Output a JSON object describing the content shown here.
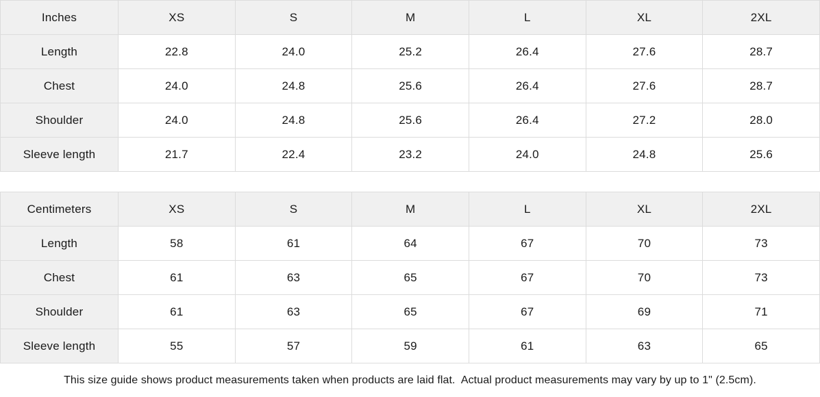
{
  "tables": [
    {
      "unit_label": "Inches",
      "sizes": [
        "XS",
        "S",
        "M",
        "L",
        "XL",
        "2XL"
      ],
      "rows": [
        {
          "label": "Length",
          "values": [
            "22.8",
            "24.0",
            "25.2",
            "26.4",
            "27.6",
            "28.7"
          ]
        },
        {
          "label": "Chest",
          "values": [
            "24.0",
            "24.8",
            "25.6",
            "26.4",
            "27.6",
            "28.7"
          ]
        },
        {
          "label": "Shoulder",
          "values": [
            "24.0",
            "24.8",
            "25.6",
            "26.4",
            "27.2",
            "28.0"
          ]
        },
        {
          "label": "Sleeve length",
          "values": [
            "21.7",
            "22.4",
            "23.2",
            "24.0",
            "24.8",
            "25.6"
          ]
        }
      ]
    },
    {
      "unit_label": "Centimeters",
      "sizes": [
        "XS",
        "S",
        "M",
        "L",
        "XL",
        "2XL"
      ],
      "rows": [
        {
          "label": "Length",
          "values": [
            "58",
            "61",
            "64",
            "67",
            "70",
            "73"
          ]
        },
        {
          "label": "Chest",
          "values": [
            "61",
            "63",
            "65",
            "67",
            "70",
            "73"
          ]
        },
        {
          "label": "Shoulder",
          "values": [
            "61",
            "63",
            "65",
            "67",
            "69",
            "71"
          ]
        },
        {
          "label": "Sleeve length",
          "values": [
            "55",
            "57",
            "59",
            "61",
            "63",
            "65"
          ]
        }
      ]
    }
  ],
  "footer_note": "This size guide shows product measurements taken when products are laid flat.  Actual product measurements may vary by up to 1\" (2.5cm).",
  "colors": {
    "header_bg": "#f0f0f0",
    "border": "#dcdcdc",
    "text": "#1a1a1a",
    "background": "#ffffff"
  }
}
